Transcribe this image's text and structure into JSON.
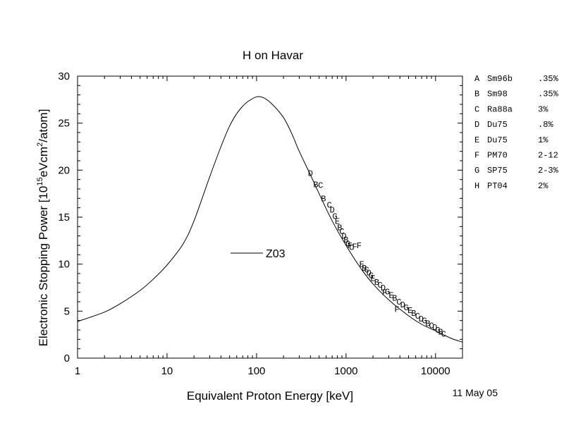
{
  "chart_data": {
    "type": "scatter",
    "title": "H on Havar",
    "xlabel": "Equivalent Proton Energy [keV]",
    "ylabel_prefix": "Electronic Stopping Power [10",
    "ylabel_sup1": "15",
    "ylabel_mid": "eVcm",
    "ylabel_sup2": "2",
    "ylabel_suffix": "/atom]",
    "xscale": "log",
    "xlim": [
      1,
      20000
    ],
    "ylim": [
      0,
      30
    ],
    "x_ticks": [
      1,
      10,
      100,
      1000,
      10000
    ],
    "x_tick_labels": [
      "1",
      "10",
      "100",
      "1000",
      "10000"
    ],
    "y_ticks": [
      0,
      5,
      10,
      15,
      20,
      25,
      30
    ],
    "y_tick_labels": [
      "0",
      "5",
      "10",
      "15",
      "20",
      "25",
      "30"
    ],
    "curve": {
      "name": "Z03",
      "x": [
        1,
        2,
        3,
        5,
        7,
        10,
        15,
        20,
        30,
        40,
        50,
        60,
        70,
        80,
        100,
        120,
        150,
        200,
        250,
        300,
        400,
        500,
        700,
        1000,
        1500,
        2000,
        3000,
        5000,
        7000,
        10000,
        15000,
        20000
      ],
      "y": [
        3.9,
        4.9,
        5.8,
        7.2,
        8.4,
        9.9,
        12.1,
        14.6,
        19.3,
        22.5,
        24.7,
        26.0,
        26.8,
        27.3,
        27.8,
        27.7,
        27.0,
        25.6,
        23.8,
        22.0,
        19.5,
        17.5,
        14.6,
        12.0,
        9.4,
        7.9,
        6.2,
        4.5,
        3.6,
        2.9,
        2.1,
        1.7
      ]
    },
    "points": [
      {
        "label": "D",
        "x": 400,
        "y": 19.7
      },
      {
        "label": "B",
        "x": 460,
        "y": 18.5
      },
      {
        "label": "C",
        "x": 520,
        "y": 18.4
      },
      {
        "label": "B",
        "x": 560,
        "y": 17.0
      },
      {
        "label": "C",
        "x": 650,
        "y": 16.3
      },
      {
        "label": "D",
        "x": 700,
        "y": 15.8
      },
      {
        "label": "G",
        "x": 750,
        "y": 15.1
      },
      {
        "label": "E",
        "x": 800,
        "y": 14.6
      },
      {
        "label": "B",
        "x": 850,
        "y": 13.9
      },
      {
        "label": "C",
        "x": 900,
        "y": 13.5
      },
      {
        "label": "D",
        "x": 950,
        "y": 13.0
      },
      {
        "label": "B",
        "x": 1000,
        "y": 12.6
      },
      {
        "label": "G",
        "x": 1050,
        "y": 12.2
      },
      {
        "label": "F",
        "x": 1100,
        "y": 12.0
      },
      {
        "label": "C",
        "x": 1150,
        "y": 11.8
      },
      {
        "label": "F",
        "x": 1250,
        "y": 11.9
      },
      {
        "label": "F",
        "x": 1400,
        "y": 12.0
      },
      {
        "label": "E",
        "x": 1500,
        "y": 10.0
      },
      {
        "label": "B",
        "x": 1600,
        "y": 9.6
      },
      {
        "label": "C",
        "x": 1700,
        "y": 9.4
      },
      {
        "label": "D",
        "x": 1800,
        "y": 9.1
      },
      {
        "label": "G",
        "x": 1900,
        "y": 8.8
      },
      {
        "label": "E",
        "x": 2000,
        "y": 8.5
      },
      {
        "label": "B",
        "x": 2200,
        "y": 8.1
      },
      {
        "label": "C",
        "x": 2400,
        "y": 7.8
      },
      {
        "label": "D",
        "x": 2600,
        "y": 7.5
      },
      {
        "label": "F",
        "x": 2700,
        "y": 7.0
      },
      {
        "label": "G",
        "x": 2900,
        "y": 7.1
      },
      {
        "label": "E",
        "x": 3200,
        "y": 6.7
      },
      {
        "label": "B",
        "x": 3500,
        "y": 6.4
      },
      {
        "label": "F",
        "x": 3700,
        "y": 5.2
      },
      {
        "label": "C",
        "x": 3900,
        "y": 6.0
      },
      {
        "label": "D",
        "x": 4300,
        "y": 5.7
      },
      {
        "label": "G",
        "x": 4700,
        "y": 5.4
      },
      {
        "label": "E",
        "x": 5200,
        "y": 5.1
      },
      {
        "label": "B",
        "x": 5700,
        "y": 4.8
      },
      {
        "label": "C",
        "x": 6300,
        "y": 4.5
      },
      {
        "label": "D",
        "x": 6900,
        "y": 4.2
      },
      {
        "label": "G",
        "x": 7500,
        "y": 4.0
      },
      {
        "label": "B",
        "x": 8200,
        "y": 3.7
      },
      {
        "label": "C",
        "x": 9000,
        "y": 3.5
      },
      {
        "label": "D",
        "x": 9800,
        "y": 3.3
      },
      {
        "label": "G",
        "x": 10600,
        "y": 3.0
      },
      {
        "label": "B",
        "x": 11400,
        "y": 2.8
      },
      {
        "label": "C",
        "x": 12300,
        "y": 2.6
      }
    ],
    "legend": [
      {
        "key": "A",
        "ref": "Sm96b",
        "err": ".35%"
      },
      {
        "key": "B",
        "ref": "Sm98",
        "err": ".35%"
      },
      {
        "key": "C",
        "ref": "Ra88a",
        "err": "3%"
      },
      {
        "key": "D",
        "ref": "Du75",
        "err": ".8%"
      },
      {
        "key": "E",
        "ref": "Du75",
        "err": "1%"
      },
      {
        "key": "F",
        "ref": "PM70",
        "err": "2-12"
      },
      {
        "key": "G",
        "ref": "SP75",
        "err": "2-3%"
      },
      {
        "key": "H",
        "ref": "PT04",
        "err": "2%"
      }
    ],
    "date_stamp": "11 May 05"
  }
}
